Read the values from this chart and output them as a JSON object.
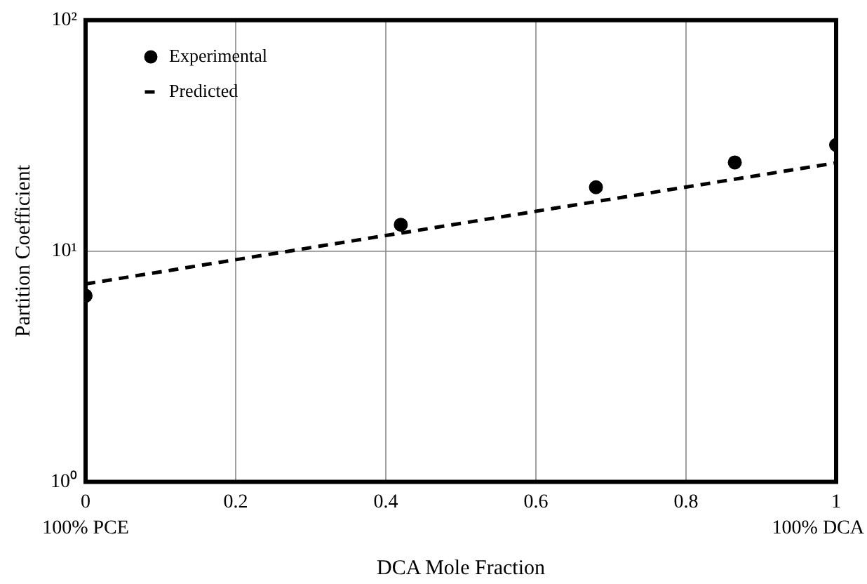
{
  "chart_data": {
    "type": "scatter",
    "xlabel": "DCA Mole Fraction",
    "ylabel": "Partition Coefficient",
    "series": [
      {
        "name": "Experimental",
        "type": "scatter",
        "color": "#000000",
        "marker": "circle",
        "x": [
          0,
          0.42,
          0.68,
          0.865,
          1
        ],
        "values": [
          6.4,
          13,
          18.9,
          24.2,
          28.8
        ]
      },
      {
        "name": "Predicted",
        "type": "line",
        "color": "#000000",
        "line_style": "dashed",
        "marker": "none",
        "x": [
          0,
          1
        ],
        "values": [
          7.2,
          24.1
        ]
      }
    ],
    "xlim": [
      0,
      1
    ],
    "xticks": [
      0,
      0.2,
      0.4,
      0.6,
      0.8,
      1
    ],
    "annotations": [
      "100% PCE",
      "100% DCA"
    ],
    "ylim": [
      1,
      100
    ],
    "yticks": [
      {
        "value": 1,
        "label": "10⁰"
      },
      {
        "value": 10,
        "label": "10¹"
      },
      {
        "value": 100,
        "label": "10²"
      }
    ],
    "log": "y",
    "grid": true,
    "legend": "top left"
  }
}
